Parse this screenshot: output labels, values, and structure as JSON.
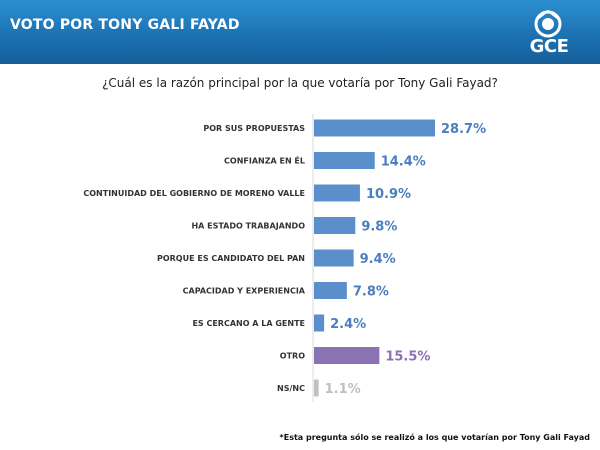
{
  "header": {
    "title": "VOTO POR TONY GALI FAYAD",
    "logo_text": "GCE"
  },
  "question": "¿Cuál es la razón principal por la que votaría por Tony Gali Fayad?",
  "footnote": "*Esta pregunta sólo se realizó a los que votarían por Tony Gali Fayad",
  "colors": {
    "primary": "#5b8fcb",
    "other": "#8a72b4",
    "nsnc": "#bfbfbf",
    "header": "#1b6fb0"
  },
  "chart_data": {
    "type": "bar",
    "orientation": "horizontal",
    "categories": [
      "POR SUS PROPUESTAS",
      "CONFIANZA EN ÉL",
      "CONTINUIDAD DEL GOBIERNO DE MORENO VALLE",
      "HA ESTADO TRABAJANDO",
      "PORQUE ES CANDIDATO DEL PAN",
      "CAPACIDAD Y EXPERIENCIA",
      "ES CERCANO A LA GENTE",
      "OTRO",
      "NS/NC"
    ],
    "values": [
      28.7,
      14.4,
      10.9,
      9.8,
      9.4,
      7.8,
      2.4,
      15.5,
      1.1
    ],
    "value_labels": [
      "28.7%",
      "14.4%",
      "10.9%",
      "9.8%",
      "9.4%",
      "7.8%",
      "2.4%",
      "15.5%",
      "1.1%"
    ],
    "bar_colors": [
      "#5b8fcb",
      "#5b8fcb",
      "#5b8fcb",
      "#5b8fcb",
      "#5b8fcb",
      "#5b8fcb",
      "#5b8fcb",
      "#8a72b4",
      "#bfbfbf"
    ],
    "title": "¿Cuál es la razón principal por la que votaría por Tony Gali Fayad?",
    "xlim": [
      0,
      28.7
    ],
    "grid": false,
    "legend": "none"
  }
}
